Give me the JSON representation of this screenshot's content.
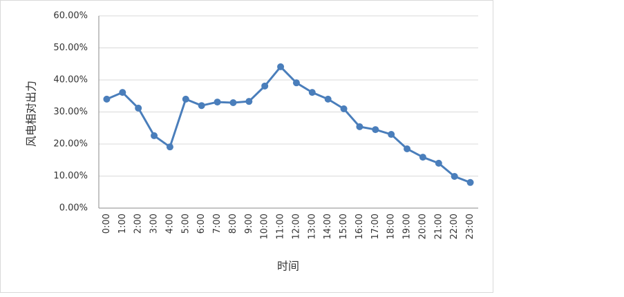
{
  "chart_data": {
    "type": "line",
    "y_label": "风电相对出力",
    "x_label": "时间",
    "categories": [
      "0:00",
      "1:00",
      "2:00",
      "3:00",
      "4:00",
      "5:00",
      "6:00",
      "7:00",
      "8:00",
      "9:00",
      "10:00",
      "11:00",
      "12:00",
      "13:00",
      "14:00",
      "15:00",
      "16:00",
      "17:00",
      "18:00",
      "19:00",
      "20:00",
      "21:00",
      "22:00",
      "23:00"
    ],
    "values": [
      34.0,
      36.1,
      31.2,
      22.6,
      19.1,
      34.0,
      32.0,
      33.1,
      32.9,
      33.3,
      38.1,
      44.1,
      39.1,
      36.1,
      34.0,
      31.0,
      25.4,
      24.5,
      23.0,
      18.5,
      15.9,
      14.0,
      9.9,
      8.0
    ],
    "color": "#4a7ebb",
    "ylim": [
      0,
      60
    ],
    "yticks": [
      {
        "value": 0,
        "label": "0.00%"
      },
      {
        "value": 10,
        "label": "10.00%"
      },
      {
        "value": 20,
        "label": "20.00%"
      },
      {
        "value": 30,
        "label": "30.00%"
      },
      {
        "value": 40,
        "label": "40.00%"
      },
      {
        "value": 50,
        "label": "50.00%"
      },
      {
        "value": 60,
        "label": "60.00%"
      }
    ],
    "grid": true
  }
}
